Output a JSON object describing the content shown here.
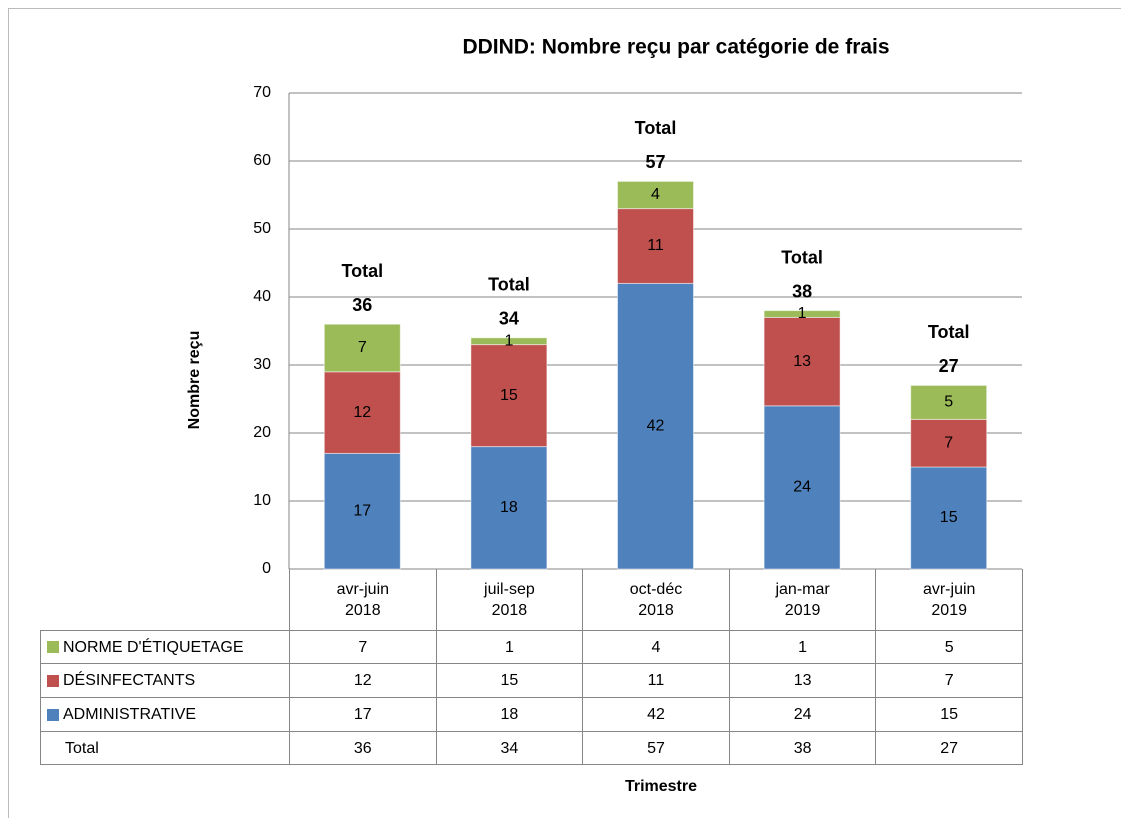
{
  "chart_data": {
    "type": "stacked_bar",
    "title": "DDIND:  Nombre reçu par catégorie de frais",
    "y_label": "Nombre reçu",
    "x_label": "Trimestre",
    "categories": [
      "avr-juin 2018",
      "juil-sep 2018",
      "oct-déc 2018",
      "jan-mar 2019",
      "avr-juin 2019"
    ],
    "series": [
      {
        "name": "ADMINISTRATIVE",
        "color": "#4f81bd",
        "values": [
          17,
          18,
          42,
          24,
          15
        ]
      },
      {
        "name": "DÉSINFECTANTS",
        "color": "#c0504d",
        "values": [
          12,
          15,
          11,
          13,
          7
        ]
      },
      {
        "name": "NORME D'ÉTIQUETAGE",
        "color": "#9bbb59",
        "values": [
          7,
          1,
          4,
          1,
          5
        ]
      }
    ],
    "total_label": "Total",
    "totals": [
      36,
      34,
      57,
      38,
      27
    ],
    "ylim": [
      0,
      70
    ],
    "yticks": [
      0,
      10,
      20,
      30,
      40,
      50,
      60,
      70
    ],
    "grid": true
  }
}
